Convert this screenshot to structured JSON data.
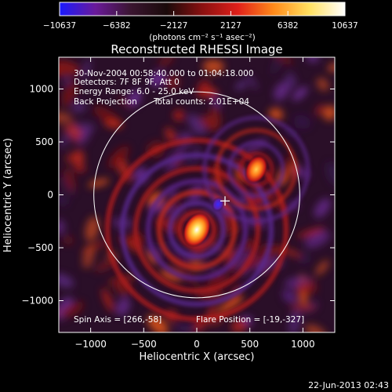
{
  "colorbar": {
    "ticks": [
      "−10637",
      "−6382",
      "−2127",
      "2127",
      "6382",
      "10637"
    ],
    "unit_label": "(photons cm⁻² s⁻¹ asec⁻²)",
    "stops": [
      "#1a1aff",
      "#6a1a9a",
      "#3a1530",
      "#1a0a0a",
      "#8a1010",
      "#e0201a",
      "#ff8a1a",
      "#ffe060",
      "#ffffff"
    ]
  },
  "title": "Reconstructed RHESSI Image",
  "annotations": {
    "time_range": "30-Nov-2004 00:58:40.000 to 01:04:18.000",
    "detectors": "Detectors: 7F 8F 9F, Att 0",
    "energy": "Energy Range: 6.0 - 25.0 keV",
    "method": "Back Projection",
    "total_counts": "Total counts: 2.01E+04",
    "spin_axis": "Spin Axis = [266,-58]",
    "flare_position": "Flare Position = [-19,-327]"
  },
  "axes": {
    "x_label": "Heliocentric X (arcsec)",
    "y_label": "Heliocentric Y (arcsec)",
    "x_ticks": [
      -1000,
      -500,
      0,
      500,
      1000
    ],
    "x_tick_labels": [
      "−1000",
      "−500",
      "0",
      "500",
      "1000"
    ],
    "y_ticks": [
      1000,
      500,
      0,
      -500,
      -1000
    ],
    "y_tick_labels": [
      "1000",
      "500",
      "0",
      "−500",
      "−1000"
    ],
    "x_range": [
      -1300,
      1300
    ],
    "y_range": [
      -1300,
      1300
    ]
  },
  "image": {
    "solar_limb_radius_arcsec": 970,
    "marker_position": [
      266,
      -58
    ],
    "sources": [
      {
        "x": 0,
        "y": -330,
        "label": "bright source"
      },
      {
        "x": 560,
        "y": 240,
        "label": "secondary source"
      },
      {
        "x": 200,
        "y": -90,
        "label": "negative source"
      }
    ]
  },
  "footer_date": "22-Jun-2013 02:43"
}
